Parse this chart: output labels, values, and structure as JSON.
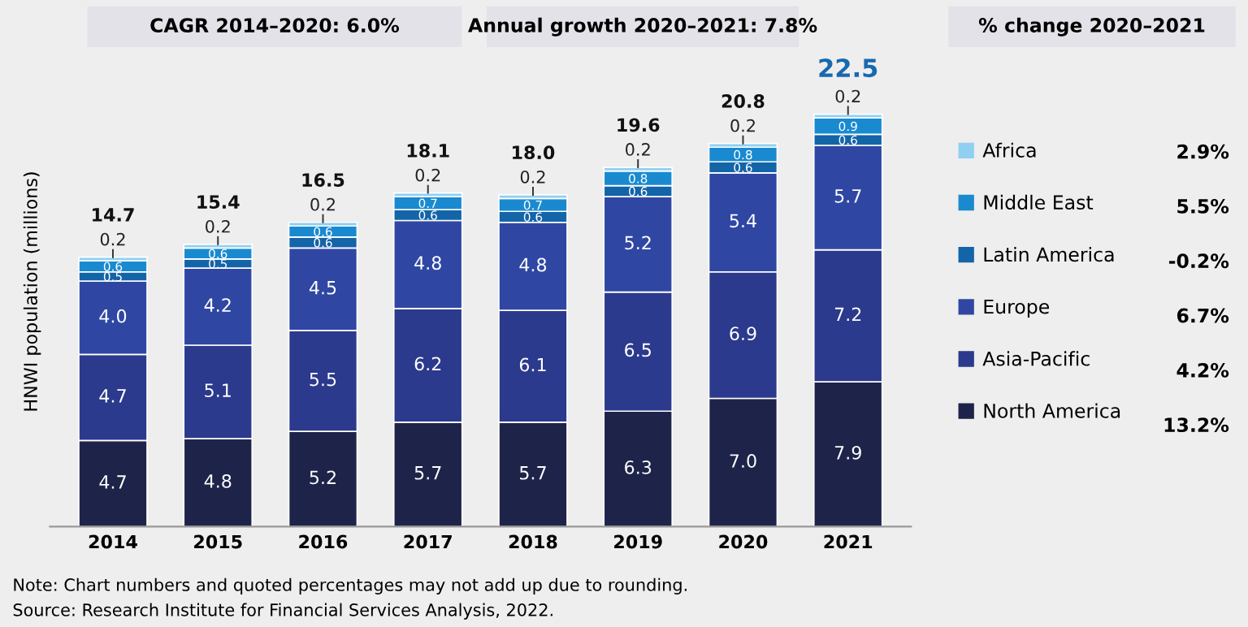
{
  "chart_data": {
    "type": "bar",
    "stacked": true,
    "data_labels": true,
    "legend": "right",
    "grid": false,
    "ylabel": "HNWI population (millions)",
    "categories": [
      "2014",
      "2015",
      "2016",
      "2017",
      "2018",
      "2019",
      "2020",
      "2021"
    ],
    "series": [
      {
        "name": "North America",
        "color": "#1e2449",
        "values": [
          4.7,
          4.8,
          5.2,
          5.7,
          5.7,
          6.3,
          7.0,
          7.9
        ],
        "value_labels": [
          "4.7",
          "4.8",
          "5.2",
          "5.7",
          "5.7",
          "6.3",
          "7.0",
          "7.9"
        ]
      },
      {
        "name": "Asia-Pacific",
        "color": "#2b3a8c",
        "values": [
          4.7,
          5.1,
          5.5,
          6.2,
          6.1,
          6.5,
          6.9,
          7.2
        ],
        "value_labels": [
          "4.7",
          "5.1",
          "5.5",
          "6.2",
          "6.1",
          "6.5",
          "6.9",
          "7.2"
        ]
      },
      {
        "name": "Europe",
        "color": "#2f47a3",
        "values": [
          4.0,
          4.2,
          4.5,
          4.8,
          4.8,
          5.2,
          5.4,
          5.7
        ],
        "value_labels": [
          "4.0",
          "4.2",
          "4.5",
          "4.8",
          "4.8",
          "5.2",
          "5.4",
          "5.7"
        ]
      },
      {
        "name": "Latin America",
        "color": "#1464a8",
        "values": [
          0.5,
          0.5,
          0.6,
          0.6,
          0.6,
          0.6,
          0.6,
          0.6
        ],
        "value_labels": [
          "0.5",
          "0.5",
          "0.6",
          "0.6",
          "0.6",
          "0.6",
          "0.6",
          "0.6"
        ]
      },
      {
        "name": "Middle East",
        "color": "#1a8ad0",
        "values": [
          0.6,
          0.6,
          0.6,
          0.7,
          0.7,
          0.8,
          0.8,
          0.9
        ],
        "value_labels": [
          "0.6",
          "0.6",
          "0.6",
          "0.7",
          "0.7",
          "0.8",
          "0.8",
          "0.9"
        ]
      },
      {
        "name": "Africa",
        "color": "#8fd0f2",
        "values": [
          0.2,
          0.2,
          0.2,
          0.2,
          0.2,
          0.2,
          0.2,
          0.2
        ],
        "value_labels": [
          "0.2",
          "0.2",
          "0.2",
          "0.2",
          "0.2",
          "0.2",
          "0.2",
          "0.2"
        ]
      }
    ],
    "totals": [
      "14.7",
      "15.4",
      "16.5",
      "18.1",
      "18.0",
      "19.6",
      "20.8",
      "22.5"
    ],
    "annotations": [
      "CAGR 2014–2020: 6.0%",
      "Annual growth 2020–2021: 7.8%",
      "% change 2020–2021",
      "13.2%",
      "4.2%",
      "6.7%",
      "-0.2%",
      "5.5%",
      "2.9%",
      "Note: Chart numbers and quoted percentages may not add up due to rounding.",
      "Source: Research Institute for Financial Services Analysis, 2022."
    ]
  }
}
